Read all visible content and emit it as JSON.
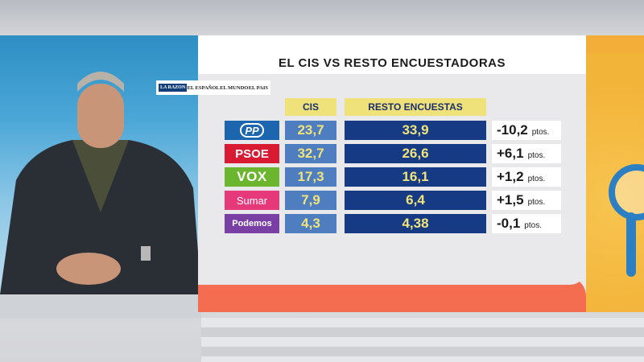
{
  "title": "EL CIS VS RESTO ENCUESTADORAS",
  "logos": [
    "LA RAZON",
    "EL ESPAÑOL",
    "EL MUNDO",
    "EL PAIS"
  ],
  "columns": {
    "cis": "CIS",
    "resto": "RESTO ENCUESTAS"
  },
  "rows": [
    {
      "party": "PP",
      "cis": "23,7",
      "resto": "33,9",
      "diff": "-10,2",
      "unit": "ptos.",
      "color": "#1c66b0"
    },
    {
      "party": "PSOE",
      "cis": "32,7",
      "resto": "26,6",
      "diff": "+6,1",
      "unit": "ptos.",
      "color": "#d81a33"
    },
    {
      "party": "VOX",
      "cis": "17,3",
      "resto": "16,1",
      "diff": "+1,2",
      "unit": "ptos.",
      "color": "#6cb52e"
    },
    {
      "party": "Sumar",
      "cis": "7,9",
      "resto": "6,4",
      "diff": "+1,5",
      "unit": "ptos.",
      "color": "#e6397a"
    },
    {
      "party": "Podemos",
      "cis": "4,3",
      "resto": "4,38",
      "diff": "-0,1",
      "unit": "ptos.",
      "color": "#7a3fa5"
    }
  ],
  "colors": {
    "cis_cell": "#4e7dc0",
    "resto_cell": "#173a84",
    "header": "#efe27a",
    "accent_orange": "#f46d50"
  }
}
